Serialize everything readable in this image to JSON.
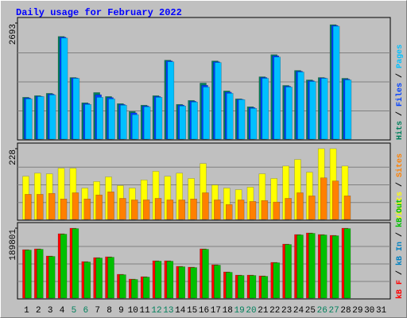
{
  "chart_data": [
    {
      "type": "bar",
      "title": "Daily usage for February 2022",
      "categories": [
        "1",
        "2",
        "3",
        "4",
        "5",
        "6",
        "7",
        "8",
        "9",
        "10",
        "11",
        "12",
        "13",
        "14",
        "15",
        "16",
        "17",
        "18",
        "19",
        "20",
        "21",
        "22",
        "23",
        "24",
        "25",
        "26",
        "27",
        "28",
        "29",
        "30",
        "31"
      ],
      "category_colors": [
        "#000000",
        "#000000",
        "#000000",
        "#000000",
        "#00805c",
        "#00805c",
        "#000000",
        "#000000",
        "#000000",
        "#000000",
        "#000000",
        "#00805c",
        "#00805c",
        "#000000",
        "#000000",
        "#000000",
        "#000000",
        "#000000",
        "#00805c",
        "#00805c",
        "#000000",
        "#000000",
        "#000000",
        "#000000",
        "#000000",
        "#00805c",
        "#00805c",
        "#000000",
        "#000000",
        "#000000",
        "#000000"
      ],
      "legend_separator": " / ",
      "ylim": [
        0,
        2693
      ],
      "yticks": [
        2693
      ],
      "series": [
        {
          "name": "Hits",
          "color": "#00805c",
          "values": [
            971,
            1008,
            1063,
            2382,
            1429,
            843,
            1081,
            989,
            824,
            641,
            788,
            1008,
            1832,
            806,
            898,
            1301,
            1814,
            1118,
            934,
            751,
            1447,
            1960,
            1246,
            1594,
            1374,
            1429,
            2656,
            1411,
            null,
            null,
            null
          ]
        },
        {
          "name": "Files",
          "color": "#0040ff",
          "values": [
            955,
            995,
            1045,
            2365,
            1420,
            825,
            1030,
            965,
            805,
            610,
            770,
            990,
            1815,
            790,
            880,
            1250,
            1795,
            1090,
            925,
            732,
            1430,
            1935,
            1228,
            1575,
            1355,
            1420,
            2638,
            1392,
            null,
            null,
            null
          ]
        },
        {
          "name": "Pages",
          "color": "#00c0ff",
          "values": [
            934,
            989,
            1026,
            2345,
            1411,
            806,
            971,
            934,
            788,
            568,
            751,
            971,
            1795,
            769,
            861,
            1209,
            1777,
            1063,
            916,
            714,
            1411,
            1905,
            1209,
            1557,
            1337,
            1411,
            2620,
            1374,
            null,
            null,
            null
          ]
        }
      ]
    },
    {
      "type": "bar",
      "ylim": [
        0,
        228
      ],
      "yticks": [
        228
      ],
      "series": [
        {
          "name": "Visits",
          "color": "#ffff00",
          "values": [
            139,
            149,
            147,
            165,
            165,
            101,
            122,
            137,
            109,
            101,
            127,
            155,
            139,
            149,
            132,
            180,
            111,
            101,
            96,
            104,
            147,
            132,
            172,
            193,
            152,
            228,
            228,
            172,
            null,
            null,
            null
          ]
        },
        {
          "name": "Sites",
          "color": "#ff8000",
          "values": [
            81,
            81,
            84,
            66,
            86,
            66,
            79,
            89,
            68,
            63,
            63,
            68,
            63,
            63,
            66,
            86,
            63,
            48,
            63,
            58,
            61,
            56,
            68,
            86,
            76,
            134,
            124,
            76,
            null,
            null,
            null
          ]
        }
      ]
    },
    {
      "type": "bar",
      "ylim": [
        0,
        189801
      ],
      "yticks": [
        189801
      ],
      "legend": [
        {
          "name": "kB F",
          "color": "#ff0000"
        },
        {
          "name": "kB In",
          "color": "#0080c0"
        },
        {
          "name": "kB Out",
          "color": "#00c000"
        }
      ],
      "series": [
        {
          "name": "kB F",
          "color": "#ff0000",
          "values": [
            131565,
            133722,
            114311,
            174705,
            189801,
            99213,
            109997,
            112154,
            64704,
            51763,
            58234,
            101370,
            101370,
            86272,
            84115,
            133722,
            90586,
            71174,
            62547,
            62547,
            60390,
            97056,
            146663,
            172544,
            176858,
            172544,
            170387,
            189801,
            null,
            null,
            null
          ]
        },
        {
          "name": "kB Out",
          "color": "#00c000",
          "values": [
            130500,
            132600,
            113200,
            173600,
            188700,
            98100,
            108900,
            111000,
            63600,
            50700,
            57100,
            100300,
            100300,
            85200,
            83000,
            132600,
            89500,
            70100,
            61500,
            61500,
            59300,
            96000,
            145600,
            171500,
            175800,
            171500,
            169300,
            188700,
            null,
            null,
            null
          ]
        }
      ]
    }
  ]
}
